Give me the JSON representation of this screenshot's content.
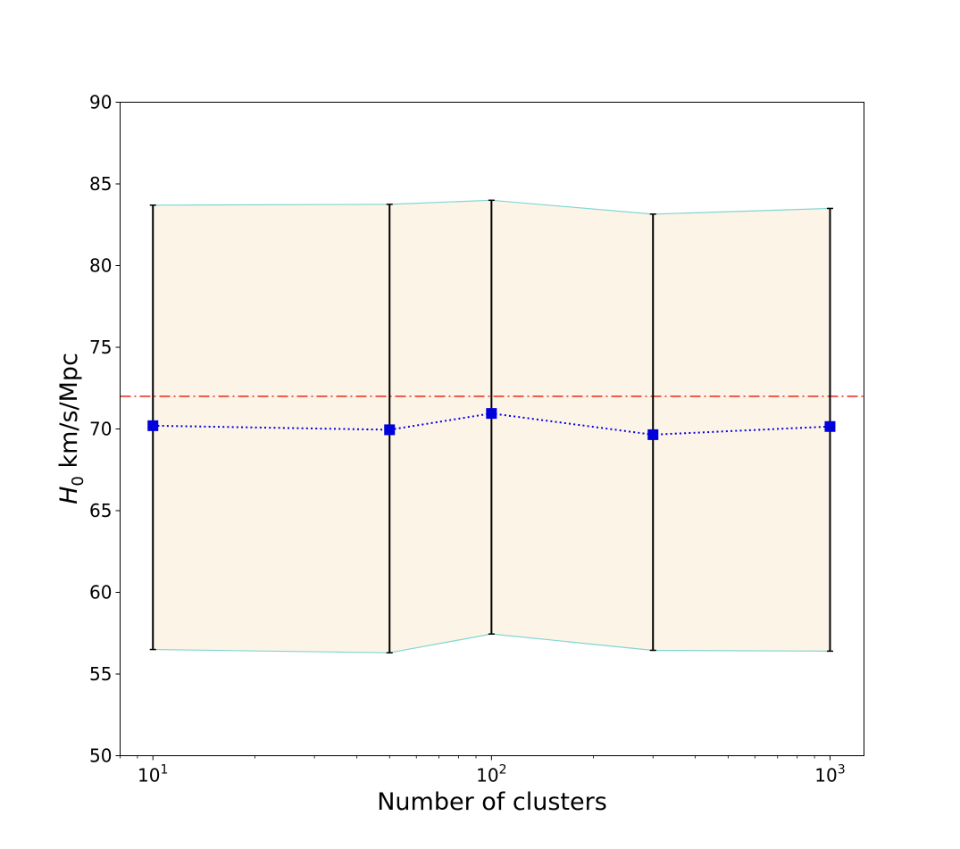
{
  "chart_data": {
    "type": "line",
    "xscale": "log",
    "xlabel": "Number of clusters",
    "ylabel": {
      "symbol": "H",
      "subscript": "0",
      "units": " km/s/Mpc"
    },
    "xlim": [
      8,
      1260
    ],
    "ylim": [
      50,
      90
    ],
    "xticks": [
      {
        "value": 10,
        "base": "10",
        "exp": "1"
      },
      {
        "value": 100,
        "base": "10",
        "exp": "2"
      },
      {
        "value": 1000,
        "base": "10",
        "exp": "3"
      }
    ],
    "yticks": [
      50,
      55,
      60,
      65,
      70,
      75,
      80,
      85,
      90
    ],
    "reference_line": {
      "y": 72,
      "color": "#e8392b",
      "style": "dash-dot"
    },
    "band": {
      "fill": "#fdf4e8",
      "edge": "#7fd6cf"
    },
    "series": [
      {
        "x": [
          10,
          50,
          100,
          300,
          1000
        ],
        "y": [
          70.2,
          69.95,
          70.95,
          69.65,
          70.15
        ],
        "lower": [
          56.5,
          56.3,
          57.45,
          56.45,
          56.4
        ],
        "upper": [
          83.7,
          83.75,
          84.0,
          83.15,
          83.5
        ],
        "color": "#0000dd",
        "marker": "square",
        "linestyle": "dotted",
        "errorbar_color": "#000000"
      }
    ]
  }
}
